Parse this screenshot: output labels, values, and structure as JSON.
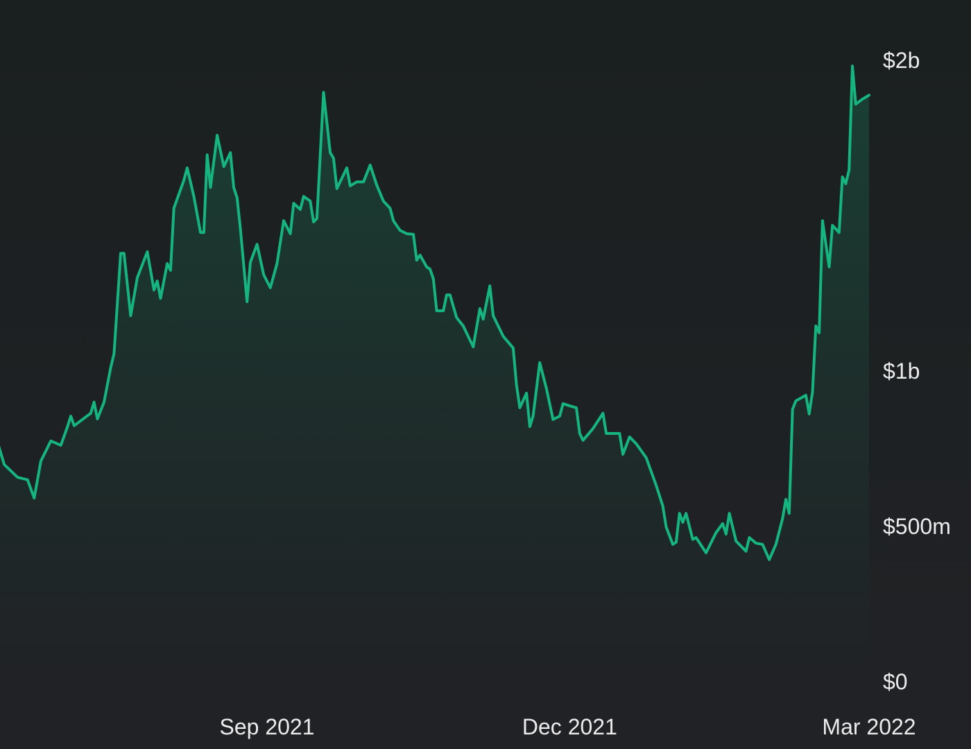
{
  "chart_data": {
    "type": "area",
    "title": "",
    "xlabel": "",
    "ylabel": "",
    "ylim": [
      0,
      2000
    ],
    "y_unit": "millions USD",
    "grid": false,
    "legend": "none",
    "colors": {
      "line": "#16b47f",
      "fill": "#16b47f",
      "background": "#1e2123",
      "text": "#ececec"
    },
    "x_ticks": [
      {
        "date": "2021-09-01",
        "label": "Sep 2021"
      },
      {
        "date": "2021-12-01",
        "label": "Dec 2021"
      },
      {
        "date": "2022-03-01",
        "label": "Mar 2022"
      }
    ],
    "y_ticks": [
      {
        "value": 0,
        "label": "$0"
      },
      {
        "value": 500,
        "label": "$500m"
      },
      {
        "value": 1000,
        "label": "$1b"
      },
      {
        "value": 2000,
        "label": "$2b"
      }
    ],
    "series": [
      {
        "points": [
          [
            "2021-06-12",
            770
          ],
          [
            "2021-06-14",
            699
          ],
          [
            "2021-06-18",
            658
          ],
          [
            "2021-06-21",
            650
          ],
          [
            "2021-06-23",
            591
          ],
          [
            "2021-06-25",
            710
          ],
          [
            "2021-06-28",
            775
          ],
          [
            "2021-07-01",
            761
          ],
          [
            "2021-07-03",
            821
          ],
          [
            "2021-07-04",
            855
          ],
          [
            "2021-07-05",
            824
          ],
          [
            "2021-07-10",
            864
          ],
          [
            "2021-07-11",
            900
          ],
          [
            "2021-07-12",
            846
          ],
          [
            "2021-07-14",
            900
          ],
          [
            "2021-07-16",
            1011
          ],
          [
            "2021-07-17",
            1056
          ],
          [
            "2021-07-19",
            1379
          ],
          [
            "2021-07-20",
            1379
          ],
          [
            "2021-07-22",
            1178
          ],
          [
            "2021-07-24",
            1301
          ],
          [
            "2021-07-27",
            1384
          ],
          [
            "2021-07-29",
            1261
          ],
          [
            "2021-07-30",
            1290
          ],
          [
            "2021-07-31",
            1234
          ],
          [
            "2021-08-02",
            1346
          ],
          [
            "2021-08-03",
            1324
          ],
          [
            "2021-08-04",
            1524
          ],
          [
            "2021-08-07",
            1614
          ],
          [
            "2021-08-08",
            1654
          ],
          [
            "2021-08-10",
            1562
          ],
          [
            "2021-08-12",
            1446
          ],
          [
            "2021-08-13",
            1446
          ],
          [
            "2021-08-14",
            1696
          ],
          [
            "2021-08-15",
            1591
          ],
          [
            "2021-08-17",
            1759
          ],
          [
            "2021-08-19",
            1658
          ],
          [
            "2021-08-21",
            1703
          ],
          [
            "2021-08-22",
            1591
          ],
          [
            "2021-08-23",
            1558
          ],
          [
            "2021-08-24",
            1458
          ],
          [
            "2021-08-26",
            1223
          ],
          [
            "2021-08-27",
            1350
          ],
          [
            "2021-08-29",
            1408
          ],
          [
            "2021-08-31",
            1310
          ],
          [
            "2021-09-02",
            1268
          ],
          [
            "2021-09-04",
            1346
          ],
          [
            "2021-09-06",
            1484
          ],
          [
            "2021-09-08",
            1442
          ],
          [
            "2021-09-09",
            1540
          ],
          [
            "2021-09-11",
            1520
          ],
          [
            "2021-09-12",
            1562
          ],
          [
            "2021-09-14",
            1547
          ],
          [
            "2021-09-15",
            1480
          ],
          [
            "2021-09-16",
            1491
          ],
          [
            "2021-09-18",
            1897
          ],
          [
            "2021-09-20",
            1703
          ],
          [
            "2021-09-21",
            1685
          ],
          [
            "2021-09-22",
            1587
          ],
          [
            "2021-09-25",
            1654
          ],
          [
            "2021-09-26",
            1596
          ],
          [
            "2021-09-28",
            1609
          ],
          [
            "2021-09-30",
            1609
          ],
          [
            "2021-10-02",
            1663
          ],
          [
            "2021-10-04",
            1598
          ],
          [
            "2021-10-06",
            1547
          ],
          [
            "2021-10-08",
            1524
          ],
          [
            "2021-10-09",
            1484
          ],
          [
            "2021-10-11",
            1453
          ],
          [
            "2021-10-13",
            1442
          ],
          [
            "2021-10-15",
            1440
          ],
          [
            "2021-10-16",
            1357
          ],
          [
            "2021-10-17",
            1373
          ],
          [
            "2021-10-19",
            1335
          ],
          [
            "2021-10-20",
            1328
          ],
          [
            "2021-10-21",
            1297
          ],
          [
            "2021-10-22",
            1194
          ],
          [
            "2021-10-24",
            1194
          ],
          [
            "2021-10-25",
            1245
          ],
          [
            "2021-10-26",
            1245
          ],
          [
            "2021-10-28",
            1172
          ],
          [
            "2021-10-30",
            1145
          ],
          [
            "2021-11-01",
            1100
          ],
          [
            "2021-11-02",
            1078
          ],
          [
            "2021-11-04",
            1201
          ],
          [
            "2021-11-05",
            1167
          ],
          [
            "2021-11-07",
            1274
          ],
          [
            "2021-11-08",
            1178
          ],
          [
            "2021-11-11",
            1112
          ],
          [
            "2021-11-14",
            1074
          ],
          [
            "2021-11-15",
            955
          ],
          [
            "2021-11-16",
            882
          ],
          [
            "2021-11-18",
            929
          ],
          [
            "2021-11-19",
            821
          ],
          [
            "2021-11-20",
            855
          ],
          [
            "2021-11-22",
            1027
          ],
          [
            "2021-11-24",
            944
          ],
          [
            "2021-11-26",
            844
          ],
          [
            "2021-11-28",
            855
          ],
          [
            "2021-11-29",
            895
          ],
          [
            "2021-12-01",
            888
          ],
          [
            "2021-12-03",
            882
          ],
          [
            "2021-12-04",
            799
          ],
          [
            "2021-12-05",
            777
          ],
          [
            "2021-12-08",
            815
          ],
          [
            "2021-12-11",
            864
          ],
          [
            "2021-12-12",
            799
          ],
          [
            "2021-12-16",
            799
          ],
          [
            "2021-12-17",
            732
          ],
          [
            "2021-12-19",
            788
          ],
          [
            "2021-12-21",
            766
          ],
          [
            "2021-12-24",
            721
          ],
          [
            "2021-12-27",
            632
          ],
          [
            "2021-12-29",
            565
          ],
          [
            "2021-12-30",
            498
          ],
          [
            "2022-01-01",
            442
          ],
          [
            "2022-01-02",
            449
          ],
          [
            "2022-01-03",
            542
          ],
          [
            "2022-01-04",
            513
          ],
          [
            "2022-01-05",
            542
          ],
          [
            "2022-01-07",
            458
          ],
          [
            "2022-01-08",
            464
          ],
          [
            "2022-01-11",
            415
          ],
          [
            "2022-01-14",
            480
          ],
          [
            "2022-01-16",
            509
          ],
          [
            "2022-01-17",
            475
          ],
          [
            "2022-01-18",
            542
          ],
          [
            "2022-01-20",
            453
          ],
          [
            "2022-01-23",
            420
          ],
          [
            "2022-01-24",
            464
          ],
          [
            "2022-01-26",
            446
          ],
          [
            "2022-01-28",
            442
          ],
          [
            "2022-01-30",
            393
          ],
          [
            "2022-02-01",
            442
          ],
          [
            "2022-02-03",
            525
          ],
          [
            "2022-02-04",
            587
          ],
          [
            "2022-02-05",
            542
          ],
          [
            "2022-02-06",
            877
          ],
          [
            "2022-02-07",
            904
          ],
          [
            "2022-02-10",
            922
          ],
          [
            "2022-02-11",
            862
          ],
          [
            "2022-02-12",
            933
          ],
          [
            "2022-02-13",
            1145
          ],
          [
            "2022-02-14",
            1123
          ],
          [
            "2022-02-15",
            1484
          ],
          [
            "2022-02-17",
            1335
          ],
          [
            "2022-02-18",
            1469
          ],
          [
            "2022-02-20",
            1446
          ],
          [
            "2022-02-21",
            1625
          ],
          [
            "2022-02-22",
            1603
          ],
          [
            "2022-02-23",
            1647
          ],
          [
            "2022-02-24",
            1982
          ],
          [
            "2022-02-25",
            1859
          ],
          [
            "2022-02-27",
            1875
          ],
          [
            "2022-03-01",
            1888
          ]
        ]
      }
    ]
  }
}
